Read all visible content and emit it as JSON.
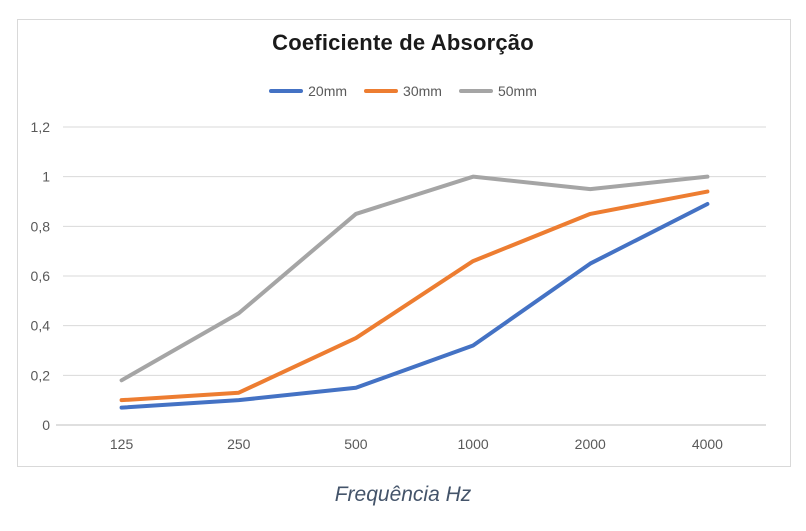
{
  "chart_data": {
    "type": "line",
    "title": "Coeficiente de Absorção",
    "xlabel": "Frequência Hz",
    "ylabel": "",
    "categories": [
      "125",
      "250",
      "500",
      "1000",
      "2000",
      "4000"
    ],
    "series": [
      {
        "name": "20mm",
        "color": "#4472C4",
        "values": [
          0.07,
          0.1,
          0.15,
          0.32,
          0.65,
          0.89
        ]
      },
      {
        "name": "30mm",
        "color": "#ED7D31",
        "values": [
          0.1,
          0.13,
          0.35,
          0.66,
          0.85,
          0.94
        ]
      },
      {
        "name": "50mm",
        "color": "#A5A5A5",
        "values": [
          0.18,
          0.45,
          0.85,
          1.0,
          0.95,
          1.0
        ]
      }
    ],
    "ylim": [
      0,
      1.2
    ],
    "y_ticks": {
      "values": [
        0,
        0.2,
        0.4,
        0.6,
        0.8,
        1,
        1.2
      ],
      "labels": [
        "0",
        "0,2",
        "0,4",
        "0,6",
        "0,8",
        "1",
        "1,2"
      ]
    },
    "grid": "horizontal",
    "legend_position": "top-center",
    "colors": {
      "gridline": "#d9d9d9",
      "axis_line": "#bfbfbf",
      "tick_label": "#595959",
      "title": "#1a1a1a",
      "xlabel": "#44546a",
      "frame_border": "#d9d9d9",
      "background": "#ffffff"
    }
  }
}
